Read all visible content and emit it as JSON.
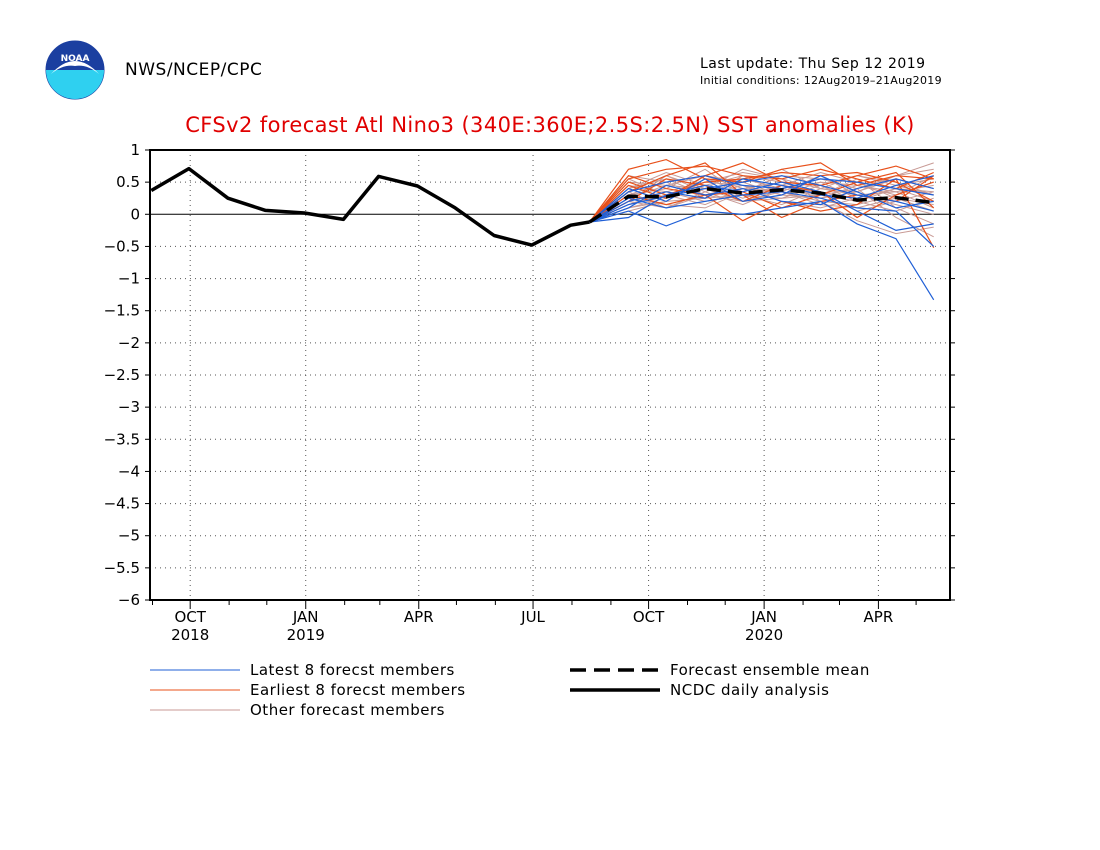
{
  "header": {
    "org": "NWS/NCEP/CPC",
    "last_update": "Last update: Thu Sep 12 2019",
    "initial_conditions": "Initial conditions: 12Aug2019–21Aug2019",
    "logo_icon": "noaa-logo-icon",
    "logo_text": "NOAA"
  },
  "colors": {
    "title": "#e00000",
    "latest": "#1f5fd6",
    "earliest": "#e8501a",
    "other": "#c89a95",
    "mean": "#000000",
    "analysis": "#000000"
  },
  "chart_data": {
    "type": "line",
    "title": "CFSv2 forecast Atl Nino3 (340E:360E;2.5S:2.5N) SST anomalies (K)",
    "ylim": [
      -6,
      1
    ],
    "xlim": [
      "2018-08-30",
      "2020-05-28"
    ],
    "yticks": [
      {
        "v": 1,
        "label": "1"
      },
      {
        "v": 0.5,
        "label": "0.5"
      },
      {
        "v": 0,
        "label": "0"
      },
      {
        "v": -0.5,
        "label": "−0.5"
      },
      {
        "v": -1,
        "label": "−1"
      },
      {
        "v": -1.5,
        "label": "−1.5"
      },
      {
        "v": -2,
        "label": "−2"
      },
      {
        "v": -2.5,
        "label": "−2.5"
      },
      {
        "v": -3,
        "label": "−3"
      },
      {
        "v": -3.5,
        "label": "−3.5"
      },
      {
        "v": -4,
        "label": "−4"
      },
      {
        "v": -4.5,
        "label": "−4.5"
      },
      {
        "v": -5,
        "label": "−5"
      },
      {
        "v": -5.5,
        "label": "−5.5"
      },
      {
        "v": -6,
        "label": "−6"
      }
    ],
    "xticks": [
      {
        "date": "2018-10-01",
        "label": "OCT",
        "year": "2018"
      },
      {
        "date": "2019-01-01",
        "label": "JAN",
        "year": "2019"
      },
      {
        "date": "2019-04-01",
        "label": "APR",
        "year": ""
      },
      {
        "date": "2019-07-01",
        "label": "JUL",
        "year": ""
      },
      {
        "date": "2019-10-01",
        "label": "OCT",
        "year": ""
      },
      {
        "date": "2020-01-01",
        "label": "JAN",
        "year": "2020"
      },
      {
        "date": "2020-04-01",
        "label": "APR",
        "year": ""
      }
    ],
    "minor_ticks": [
      "2018-09-01",
      "2018-11-01",
      "2018-12-01",
      "2019-02-01",
      "2019-03-01",
      "2019-05-01",
      "2019-06-01",
      "2019-08-01",
      "2019-09-01",
      "2019-11-01",
      "2019-12-01",
      "2020-02-01",
      "2020-03-01",
      "2020-05-01"
    ],
    "grid_dates": [
      "2018-10-01",
      "2019-01-01",
      "2019-04-01",
      "2019-07-01",
      "2019-10-01",
      "2020-01-01",
      "2020-04-01"
    ],
    "grid_y": [
      0.5,
      0,
      -0.5,
      -1,
      -1.5,
      -2,
      -2.5,
      -3,
      -3.5,
      -4,
      -4.5,
      -5,
      -5.5
    ],
    "forecast_dates": [
      "2019-08-15",
      "2019-09-15",
      "2019-10-15",
      "2019-11-15",
      "2019-12-15",
      "2020-01-15",
      "2020-02-15",
      "2020-03-15",
      "2020-04-15",
      "2020-05-15"
    ],
    "analysis": {
      "name": "NCDC daily analysis",
      "x": [
        "2018-08-31",
        "2018-09-30",
        "2018-10-31",
        "2018-11-30",
        "2018-12-31",
        "2019-01-31",
        "2019-02-28",
        "2019-03-31",
        "2019-04-30",
        "2019-05-31",
        "2019-06-30",
        "2019-07-31",
        "2019-08-15"
      ],
      "y": [
        0.37,
        0.71,
        0.25,
        0.06,
        0.02,
        -0.08,
        0.59,
        0.44,
        0.1,
        -0.33,
        -0.48,
        -0.17,
        -0.12
      ]
    },
    "mean": {
      "name": "Forecast ensemble mean",
      "y": [
        -0.12,
        0.28,
        0.27,
        0.4,
        0.33,
        0.38,
        0.33,
        0.22,
        0.26,
        0.18
      ]
    },
    "latest_members": [
      [
        -0.12,
        0.15,
        0.28,
        0.4,
        0.5,
        0.6,
        0.45,
        0.3,
        0.2,
        0.05
      ],
      [
        -0.12,
        0.05,
        -0.18,
        0.05,
        0.0,
        0.1,
        0.2,
        -0.15,
        -0.38,
        -1.33
      ],
      [
        -0.12,
        0.25,
        0.1,
        0.2,
        0.3,
        0.35,
        0.25,
        0.1,
        0.05,
        -0.5
      ],
      [
        -0.12,
        0.35,
        0.5,
        0.6,
        0.45,
        0.4,
        0.55,
        0.5,
        0.4,
        0.3
      ],
      [
        -0.12,
        -0.05,
        0.3,
        0.45,
        0.35,
        0.5,
        0.35,
        0.05,
        -0.25,
        -0.15
      ],
      [
        -0.12,
        0.2,
        0.35,
        0.25,
        0.55,
        0.45,
        0.3,
        0.25,
        0.45,
        0.6
      ],
      [
        -0.12,
        0.4,
        0.2,
        0.55,
        0.2,
        0.3,
        0.6,
        0.35,
        0.1,
        0.2
      ],
      [
        -0.12,
        0.1,
        0.45,
        0.3,
        0.4,
        0.2,
        0.15,
        0.4,
        0.55,
        0.4
      ]
    ],
    "earliest_members": [
      [
        -0.12,
        0.55,
        0.7,
        0.75,
        0.6,
        0.55,
        0.7,
        0.55,
        0.4,
        0.65
      ],
      [
        -0.12,
        0.45,
        0.25,
        0.6,
        0.8,
        0.5,
        0.45,
        0.6,
        0.75,
        0.55
      ],
      [
        -0.12,
        0.7,
        0.85,
        0.55,
        0.5,
        0.7,
        0.8,
        0.45,
        0.6,
        0.55
      ],
      [
        -0.12,
        0.3,
        0.15,
        0.3,
        -0.1,
        0.2,
        0.05,
        0.15,
        0.55,
        -0.52
      ],
      [
        -0.12,
        0.6,
        0.4,
        0.3,
        0.35,
        0.1,
        0.3,
        0.5,
        0.65,
        0.1
      ],
      [
        -0.12,
        0.2,
        0.55,
        0.45,
        0.2,
        0.45,
        0.35,
        -0.05,
        0.3,
        0.5
      ],
      [
        -0.12,
        0.35,
        0.6,
        0.8,
        0.3,
        -0.05,
        0.2,
        0.3,
        0.2,
        0.6
      ],
      [
        -0.12,
        0.5,
        0.3,
        0.5,
        0.55,
        0.65,
        0.6,
        0.65,
        0.5,
        0.2
      ]
    ],
    "other_members": [
      [
        -0.12,
        0.3,
        0.5,
        0.6,
        0.4,
        0.5,
        0.3,
        0.2,
        0.4,
        0.35
      ],
      [
        -0.12,
        0.2,
        0.1,
        0.35,
        0.55,
        0.4,
        0.5,
        0.45,
        0.3,
        0.5
      ],
      [
        -0.12,
        0.45,
        0.35,
        0.2,
        0.3,
        0.25,
        0.45,
        0.6,
        0.5,
        0.3
      ],
      [
        -0.12,
        0.1,
        0.25,
        0.5,
        0.65,
        0.55,
        0.4,
        0.3,
        0.15,
        0.0
      ],
      [
        -0.12,
        0.35,
        0.6,
        0.4,
        0.2,
        0.35,
        0.2,
        -0.1,
        -0.3,
        -0.2
      ],
      [
        -0.12,
        0.25,
        0.15,
        0.1,
        0.35,
        0.6,
        0.55,
        0.4,
        0.6,
        0.7
      ],
      [
        -0.12,
        0.5,
        0.45,
        0.6,
        0.5,
        0.3,
        0.25,
        0.45,
        0.35,
        0.45
      ],
      [
        -0.12,
        0.15,
        0.3,
        0.45,
        0.25,
        0.45,
        0.65,
        0.5,
        0.25,
        0.15
      ],
      [
        -0.12,
        0.4,
        0.55,
        0.3,
        0.45,
        0.2,
        0.1,
        0.25,
        0.45,
        0.55
      ],
      [
        -0.12,
        0.05,
        0.2,
        0.25,
        0.6,
        0.5,
        0.35,
        0.05,
        0.2,
        0.35
      ],
      [
        -0.12,
        0.3,
        0.4,
        0.7,
        0.3,
        0.15,
        0.4,
        0.35,
        0.55,
        0.4
      ],
      [
        -0.12,
        0.2,
        0.6,
        0.35,
        0.15,
        0.4,
        0.3,
        0.55,
        0.1,
        -0.15
      ],
      [
        -0.12,
        0.45,
        0.25,
        0.55,
        0.35,
        0.6,
        0.45,
        0.2,
        0.05,
        0.25
      ],
      [
        -0.12,
        0.55,
        0.3,
        0.15,
        0.4,
        0.35,
        0.6,
        0.3,
        0.35,
        0.1
      ],
      [
        -0.12,
        0.25,
        0.45,
        0.4,
        0.7,
        0.55,
        0.2,
        0.15,
        0.3,
        0.6
      ],
      [
        -0.12,
        0.35,
        0.1,
        0.3,
        0.2,
        0.25,
        0.3,
        0.4,
        -0.05,
        -0.35
      ],
      [
        -0.12,
        0.15,
        0.35,
        0.5,
        0.45,
        0.3,
        0.5,
        0.25,
        0.4,
        0.2
      ],
      [
        -0.12,
        0.6,
        0.5,
        0.25,
        0.3,
        0.45,
        0.25,
        0.35,
        0.6,
        0.8
      ],
      [
        -0.12,
        0.1,
        0.2,
        0.6,
        0.5,
        0.7,
        0.4,
        0.6,
        0.45,
        0.3
      ],
      [
        -0.12,
        0.4,
        0.65,
        0.45,
        0.6,
        0.35,
        0.15,
        0.1,
        0.25,
        0.05
      ]
    ],
    "legend": [
      {
        "key": "latest",
        "label": "Latest 8 forecst members",
        "style": "thin",
        "color": "#1f5fd6"
      },
      {
        "key": "earliest",
        "label": "Earliest 8 forecst members",
        "style": "thin",
        "color": "#e8501a"
      },
      {
        "key": "other",
        "label": "Other forecast members",
        "style": "thin",
        "color": "#c89a95"
      },
      {
        "key": "mean",
        "label": "Forecast ensemble mean",
        "style": "dashed",
        "color": "#000000"
      },
      {
        "key": "analysis",
        "label": "NCDC daily analysis",
        "style": "solid",
        "color": "#000000"
      }
    ],
    "legend_position": "bottom",
    "grid": true
  }
}
